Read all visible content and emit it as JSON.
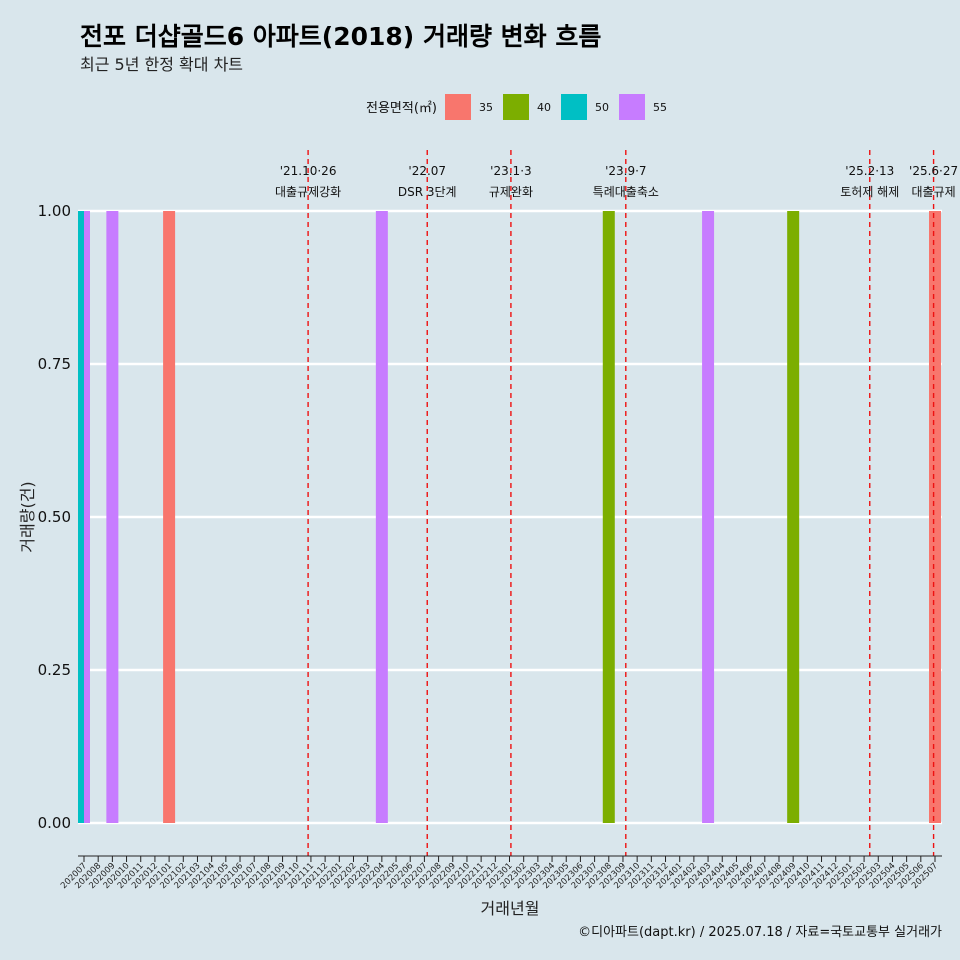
{
  "chart_data": {
    "type": "bar",
    "title": "전포 더샵골드6 아파트(2018) 거래량 변화 흐름",
    "subtitle": "최근 5년 한정 확대 차트",
    "xlabel": "거래년월",
    "ylabel": "거래량(건)",
    "ylim": [
      0,
      1
    ],
    "yticks": [
      "0.00",
      "0.25",
      "0.50",
      "0.75",
      "1.00"
    ],
    "grid": true,
    "legend": {
      "title": "전용면적(㎡)",
      "position": "top",
      "entries": [
        {
          "name": "35",
          "color": "#f8766d"
        },
        {
          "name": "40",
          "color": "#7cae00"
        },
        {
          "name": "50",
          "color": "#00bfc4"
        },
        {
          "name": "55",
          "color": "#c77cff"
        }
      ]
    },
    "categories": [
      "202007",
      "202008",
      "202009",
      "202010",
      "202011",
      "202012",
      "202101",
      "202102",
      "202103",
      "202104",
      "202105",
      "202106",
      "202107",
      "202108",
      "202109",
      "202110",
      "202111",
      "202112",
      "202201",
      "202202",
      "202203",
      "202204",
      "202205",
      "202206",
      "202207",
      "202208",
      "202209",
      "202210",
      "202211",
      "202212",
      "202301",
      "202302",
      "202303",
      "202304",
      "202305",
      "202306",
      "202307",
      "202308",
      "202309",
      "202310",
      "202311",
      "202312",
      "202401",
      "202402",
      "202403",
      "202404",
      "202405",
      "202406",
      "202407",
      "202408",
      "202409",
      "202410",
      "202411",
      "202412",
      "202501",
      "202502",
      "202503",
      "202504",
      "202505",
      "202506",
      "202507"
    ],
    "bars": [
      {
        "month": "202007",
        "area": "50",
        "value": 1
      },
      {
        "month": "202007",
        "area": "55",
        "value": 1
      },
      {
        "month": "202009",
        "area": "55",
        "value": 1
      },
      {
        "month": "202101",
        "area": "35",
        "value": 1
      },
      {
        "month": "202204",
        "area": "55",
        "value": 1
      },
      {
        "month": "202308",
        "area": "40",
        "value": 1
      },
      {
        "month": "202403",
        "area": "55",
        "value": 1
      },
      {
        "month": "202409",
        "area": "40",
        "value": 1
      },
      {
        "month": "202507",
        "area": "35",
        "value": 1
      }
    ],
    "events": [
      {
        "month": "202110",
        "offset": 0.8,
        "line1": "'21.10·26",
        "line2": "대출규제강화"
      },
      {
        "month": "202207",
        "offset": 0.2,
        "line1": "'22.07",
        "line2": "DSR 3단계"
      },
      {
        "month": "202301",
        "offset": 0.1,
        "line1": "'23.1·3",
        "line2": "규제완화"
      },
      {
        "month": "202309",
        "offset": 0.2,
        "line1": "'23.9·7",
        "line2": "특례대출축소"
      },
      {
        "month": "202502",
        "offset": 0.4,
        "line1": "'25.2·13",
        "line2": "토허제 해제"
      },
      {
        "month": "202506",
        "offset": 0.9,
        "line1": "'25.6·27",
        "line2": "대출규제"
      }
    ],
    "caption": "©디아파트(dapt.kr) / 2025.07.18 / 자료=국토교통부 실거래가"
  }
}
